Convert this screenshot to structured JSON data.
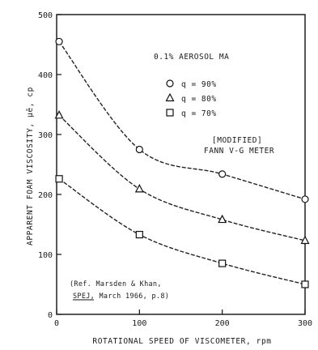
{
  "chart_data": {
    "type": "line",
    "title": "",
    "xlabel": "ROTATIONAL SPEED OF VISCOMETER, rpm",
    "ylabel": "APPARENT FOAM VISCOSITY, μē, cp",
    "xlim": [
      0,
      300
    ],
    "ylim": [
      0,
      500
    ],
    "xticks": [
      "0",
      "100",
      "200",
      "300"
    ],
    "yticks": [
      "0",
      "100",
      "200",
      "300",
      "400",
      "500"
    ],
    "grid": false,
    "legend_position": "top-right",
    "series": [
      {
        "name": "q = 90%",
        "marker": "circle",
        "x": [
          3,
          100,
          200,
          300
        ],
        "y": [
          455,
          275,
          234,
          192
        ]
      },
      {
        "name": "q = 80%",
        "marker": "triangle",
        "x": [
          3,
          100,
          200,
          300
        ],
        "y": [
          332,
          209,
          158,
          123
        ]
      },
      {
        "name": "q = 70%",
        "marker": "square",
        "x": [
          3,
          100,
          200,
          300
        ],
        "y": [
          226,
          133,
          85,
          50
        ]
      }
    ],
    "annotations": {
      "surfactant": "0.1% AEROSOL MA",
      "instrument_1": "[MODIFIED]",
      "instrument_2": "FANN V-G METER",
      "reference_1": "(Ref. Marsden & Khan,",
      "reference_2": "SPEJ, March 1966, p.8)"
    }
  }
}
